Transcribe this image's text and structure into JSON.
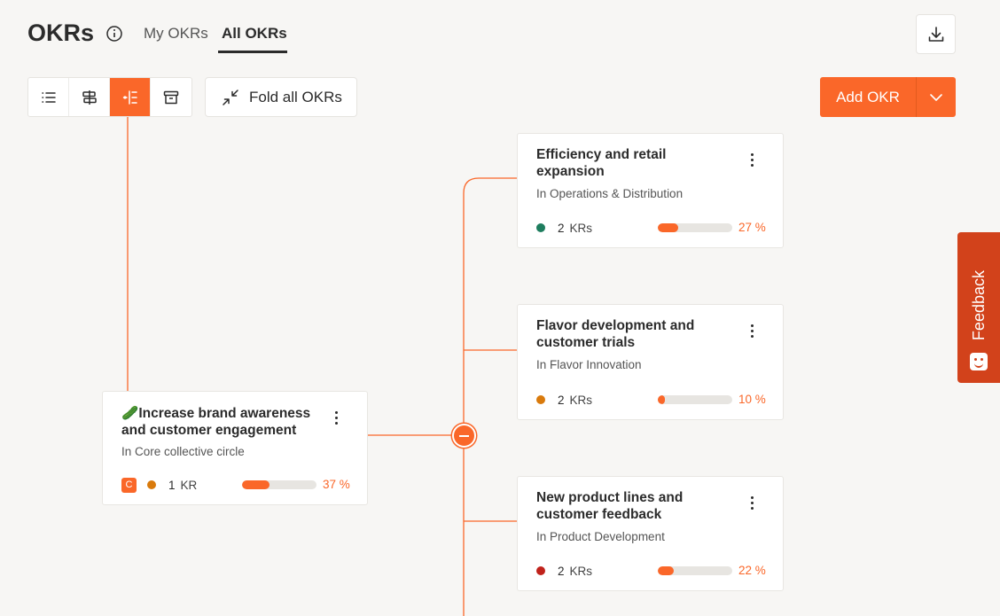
{
  "header": {
    "title": "OKRs",
    "tabs": [
      {
        "label": "My OKRs",
        "active": false
      },
      {
        "label": "All OKRs",
        "active": true
      }
    ],
    "info_icon": "info-circle-icon",
    "download_icon": "download-icon"
  },
  "toolbar": {
    "view_modes": [
      {
        "name": "list-view",
        "icon": "list-icon",
        "active": false
      },
      {
        "name": "alignment-view",
        "icon": "signpost-icon",
        "active": false
      },
      {
        "name": "tree-view",
        "icon": "tree-icon",
        "active": true
      },
      {
        "name": "archive-view",
        "icon": "archive-icon",
        "active": false
      }
    ],
    "fold_label": "Fold all OKRs",
    "add_label": "Add OKR"
  },
  "tree": {
    "root": {
      "emoji": "🥒",
      "title": "Increase brand awareness and customer engagement",
      "subtitle": "In Core collective circle",
      "badge": "C",
      "status_color": "#d97a0c",
      "kr_count": "1",
      "kr_label": "KR",
      "progress": 37,
      "progress_label": "37 %"
    },
    "children": [
      {
        "title": "Efficiency and retail expansion",
        "subtitle": "In Operations & Distribution",
        "status_color": "#1e7d5e",
        "kr_count": "2",
        "kr_label": "KRs",
        "progress": 27,
        "progress_label": "27 %"
      },
      {
        "title": "Flavor development and customer trials",
        "subtitle": "In Flavor Innovation",
        "status_color": "#d97a0c",
        "kr_count": "2",
        "kr_label": "KRs",
        "progress": 10,
        "progress_label": "10 %"
      },
      {
        "title": "New product lines and customer feedback",
        "subtitle": "In Product Development",
        "status_color": "#c0221b",
        "kr_count": "2",
        "kr_label": "KRs",
        "progress": 22,
        "progress_label": "22 %"
      }
    ]
  },
  "feedback": {
    "label": "Feedback",
    "color": "#d2421b"
  },
  "accent_color": "#fa6729"
}
